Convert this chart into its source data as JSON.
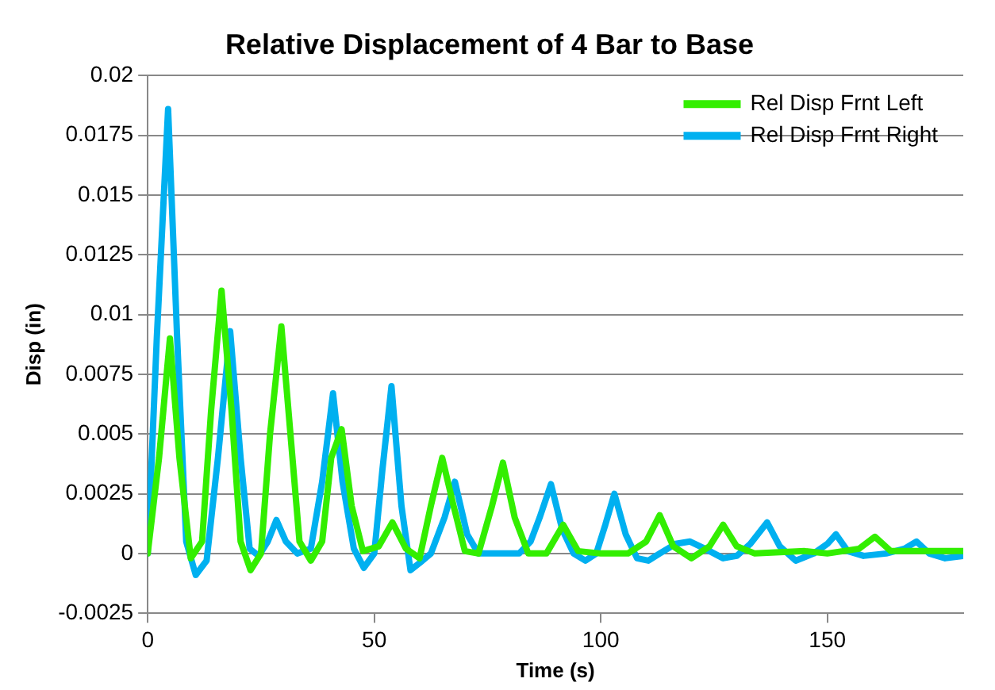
{
  "chart_data": {
    "type": "line",
    "title": "Relative Displacement of 4 Bar to Base",
    "xlabel": "Time (s)",
    "ylabel": "Disp (in)",
    "xlim": [
      0,
      180
    ],
    "xticks": [
      0,
      50,
      100,
      150
    ],
    "ylim": [
      -0.0025,
      0.02
    ],
    "yticks": [
      -0.0025,
      0,
      0.0025,
      0.005,
      0.0075,
      0.01,
      0.0125,
      0.015,
      0.0175,
      0.02
    ],
    "grid": "y",
    "legend": "top right",
    "marker": "none",
    "line_style": "solid",
    "series": [
      {
        "name": "Rel Disp Frnt Left",
        "color": "#33ee00",
        "x": [
          0,
          2.5,
          4.9,
          7,
          9.5,
          12,
          14,
          16.3,
          18.5,
          20.5,
          22.7,
          25,
          27,
          29.5,
          31.5,
          33.5,
          36,
          38.5,
          40.5,
          42.8,
          45,
          47.5,
          51,
          54,
          57,
          60,
          62.5,
          65,
          67.5,
          70,
          73,
          76,
          78.4,
          81,
          84,
          88,
          91.7,
          95,
          100,
          106,
          110,
          113,
          116,
          120,
          124,
          127,
          130,
          134,
          145,
          150,
          157,
          160.5,
          164,
          170,
          175,
          180
        ],
        "values": [
          0,
          0.004,
          0.009,
          0.004,
          -0.0002,
          0.0005,
          0.006,
          0.011,
          0.006,
          0.0005,
          -0.0007,
          0,
          0.005,
          0.0095,
          0.005,
          0.0005,
          -0.0003,
          0.0005,
          0.004,
          0.0052,
          0.002,
          0.0001,
          0.0003,
          0.0013,
          0.0002,
          -0.0002,
          0.002,
          0.004,
          0.002,
          0.0001,
          0,
          0.002,
          0.0038,
          0.0015,
          0,
          0,
          0.0012,
          0.0001,
          0,
          0,
          0.0005,
          0.0016,
          0.0003,
          -0.0002,
          0.0003,
          0.0012,
          0.0003,
          0,
          0.0001,
          0,
          0.0002,
          0.0007,
          0.0001,
          0.0001,
          0.0001,
          0.0001
        ]
      },
      {
        "name": "Rel Disp Frnt Right",
        "color": "#00b0f0",
        "x": [
          0,
          2,
          4.5,
          6.5,
          8.5,
          10.6,
          13,
          15.5,
          18.2,
          20.5,
          22.5,
          24.5,
          26.5,
          28.4,
          30.5,
          33,
          36,
          38.5,
          40.9,
          43,
          45.5,
          47.7,
          50,
          51.8,
          53.8,
          56,
          58,
          60,
          62.5,
          65.5,
          67.8,
          70.5,
          73,
          82,
          84.5,
          86.5,
          89,
          91.5,
          94,
          96.6,
          99,
          101,
          103,
          105.5,
          108,
          110.5,
          113,
          116.5,
          119.7,
          123,
          127,
          130,
          133,
          136.7,
          139.5,
          143,
          147,
          150,
          151.9,
          154.5,
          158,
          163,
          167,
          169.7,
          172.5,
          176,
          180
        ],
        "values": [
          0,
          0.009,
          0.0186,
          0.009,
          0.0005,
          -0.0009,
          -0.0003,
          0.004,
          0.0093,
          0.004,
          0.0002,
          -0.0001,
          0.0005,
          0.0014,
          0.0005,
          0,
          0.0002,
          0.003,
          0.0067,
          0.003,
          0.0002,
          -0.0006,
          0,
          0.0035,
          0.007,
          0.002,
          -0.0007,
          -0.0004,
          0,
          0.0015,
          0.003,
          0.0008,
          0,
          0,
          0.0005,
          0.0015,
          0.0029,
          0.001,
          0,
          -0.0003,
          0,
          0.0012,
          0.0025,
          0.0008,
          -0.0002,
          -0.0003,
          0,
          0.0004,
          0.0005,
          0.0002,
          -0.0002,
          -0.0001,
          0.0004,
          0.0013,
          0.0003,
          -0.0003,
          0,
          0.0004,
          0.0008,
          0.0001,
          -0.0001,
          0,
          0.0002,
          0.0005,
          0,
          -0.0002,
          -0.0001
        ]
      }
    ]
  }
}
